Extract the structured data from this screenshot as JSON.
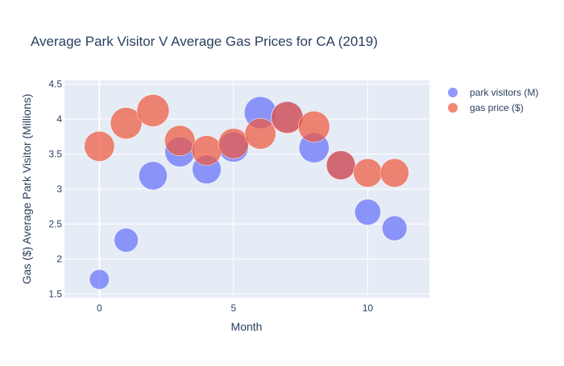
{
  "chart_data": {
    "type": "scatter",
    "title": "Average Park Visitor V Average Gas Prices for CA (2019)",
    "xlabel": "Month",
    "ylabel": "Gas ($) Average Park Visitor (Millions)",
    "xlim": [
      -1.3,
      12.3
    ],
    "ylim": [
      1.45,
      4.55
    ],
    "x_ticks": [
      0,
      5,
      10
    ],
    "y_ticks": [
      1.5,
      2,
      2.5,
      3,
      3.5,
      4,
      4.5
    ],
    "y_tick_labels": [
      "1.5",
      "2",
      "2.5",
      "3",
      "3.5",
      "4",
      "4.5"
    ],
    "grid": true,
    "legend_position": "top-right",
    "series": [
      {
        "name": "park visitors (M)",
        "color": "#636efa",
        "x": [
          0,
          1,
          2,
          3,
          4,
          5,
          6,
          7,
          8,
          9,
          10,
          11
        ],
        "y": [
          1.71,
          2.27,
          3.19,
          3.53,
          3.28,
          3.6,
          4.09,
          4.03,
          3.59,
          3.34,
          2.67,
          2.44
        ],
        "size": [
          1.71,
          2.27,
          3.19,
          3.53,
          3.28,
          3.6,
          4.09,
          4.03,
          3.59,
          3.34,
          2.67,
          2.44
        ]
      },
      {
        "name": "gas price ($)",
        "color": "#ef553b",
        "x": [
          0,
          1,
          2,
          3,
          4,
          5,
          6,
          7,
          8,
          9,
          10,
          11
        ],
        "y": [
          3.61,
          3.94,
          4.12,
          3.69,
          3.55,
          3.65,
          3.79,
          4.02,
          3.89,
          3.34,
          3.23,
          3.23
        ],
        "size": [
          3.61,
          3.94,
          4.12,
          3.69,
          3.55,
          3.65,
          3.79,
          4.02,
          3.89,
          3.34,
          3.23,
          3.23
        ]
      }
    ]
  }
}
